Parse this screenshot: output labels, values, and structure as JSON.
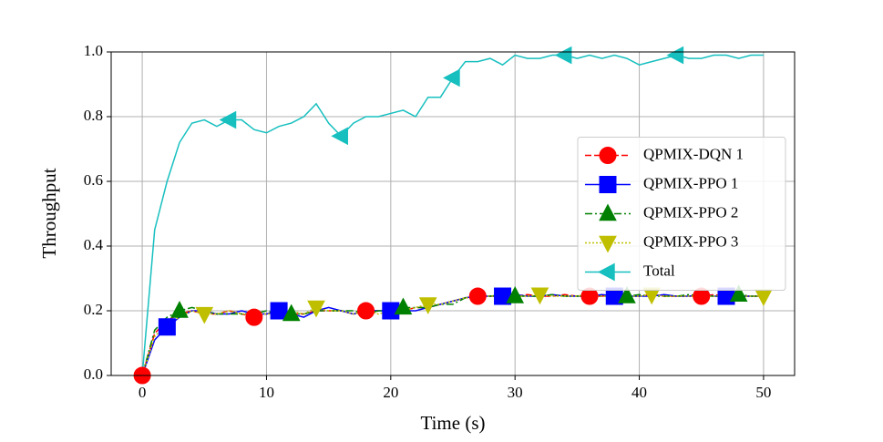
{
  "chart_data": {
    "type": "line",
    "xlabel": "Time (s)",
    "ylabel": "Throughput",
    "x": [
      0,
      1,
      2,
      3,
      4,
      5,
      6,
      7,
      8,
      9,
      10,
      11,
      12,
      13,
      14,
      15,
      16,
      17,
      18,
      19,
      20,
      21,
      22,
      23,
      24,
      25,
      26,
      27,
      28,
      29,
      30,
      31,
      32,
      33,
      34,
      35,
      36,
      37,
      38,
      39,
      40,
      41,
      42,
      43,
      44,
      45,
      46,
      47,
      48,
      49,
      50
    ],
    "xlim": [
      -2.5,
      52.5
    ],
    "xticks": [
      0,
      10,
      20,
      30,
      40,
      50
    ],
    "ylim": [
      0,
      1
    ],
    "yticks": [
      {
        "value": 0,
        "label": "0.0"
      },
      {
        "value": 0.2,
        "label": "0.2"
      },
      {
        "value": 0.4,
        "label": "0.4"
      },
      {
        "value": 0.6,
        "label": "0.6"
      },
      {
        "value": 0.8,
        "label": "0.8"
      },
      {
        "value": 1,
        "label": "1.0"
      }
    ],
    "grid": true,
    "legend": "center right",
    "series": [
      {
        "name": "QPMIX-DQN 1",
        "color": "#ff0000",
        "linestyle": "dashed",
        "marker": "o",
        "marker_start": 0,
        "marker_every": 9,
        "values": [
          0,
          0.13,
          0.17,
          0.19,
          0.2,
          0.19,
          0.19,
          0.2,
          0.19,
          0.18,
          0.19,
          0.2,
          0.19,
          0.19,
          0.2,
          0.2,
          0.2,
          0.19,
          0.2,
          0.2,
          0.2,
          0.2,
          0.21,
          0.21,
          0.22,
          0.23,
          0.24,
          0.245,
          0.245,
          0.245,
          0.245,
          0.25,
          0.245,
          0.245,
          0.25,
          0.245,
          0.245,
          0.245,
          0.25,
          0.245,
          0.245,
          0.25,
          0.245,
          0.245,
          0.245,
          0.245,
          0.25,
          0.245,
          0.245,
          0.245,
          0.245
        ]
      },
      {
        "name": "QPMIX-PPO 1",
        "color": "#0000ff",
        "linestyle": "solid",
        "marker": "s",
        "marker_start": 2,
        "marker_every": 9,
        "values": [
          0,
          0.11,
          0.15,
          0.18,
          0.2,
          0.2,
          0.19,
          0.19,
          0.2,
          0.19,
          0.19,
          0.2,
          0.19,
          0.18,
          0.2,
          0.21,
          0.2,
          0.19,
          0.2,
          0.2,
          0.2,
          0.2,
          0.2,
          0.21,
          0.22,
          0.23,
          0.24,
          0.245,
          0.245,
          0.245,
          0.25,
          0.245,
          0.245,
          0.25,
          0.245,
          0.245,
          0.245,
          0.25,
          0.245,
          0.245,
          0.245,
          0.245,
          0.25,
          0.245,
          0.245,
          0.25,
          0.245,
          0.245,
          0.245,
          0.245,
          0.245
        ]
      },
      {
        "name": "QPMIX-PPO 2",
        "color": "#008000",
        "linestyle": "dashdot",
        "marker": "^",
        "marker_start": 3,
        "marker_every": 9,
        "values": [
          0,
          0.14,
          0.18,
          0.2,
          0.21,
          0.2,
          0.19,
          0.19,
          0.19,
          0.19,
          0.2,
          0.19,
          0.19,
          0.19,
          0.2,
          0.2,
          0.2,
          0.2,
          0.19,
          0.2,
          0.2,
          0.21,
          0.21,
          0.21,
          0.22,
          0.22,
          0.24,
          0.245,
          0.245,
          0.25,
          0.245,
          0.245,
          0.245,
          0.25,
          0.245,
          0.245,
          0.25,
          0.245,
          0.245,
          0.245,
          0.25,
          0.245,
          0.245,
          0.245,
          0.25,
          0.245,
          0.245,
          0.245,
          0.25,
          0.245,
          0.245
        ]
      },
      {
        "name": "QPMIX-PPO 3",
        "color": "#bfbf00",
        "linestyle": "dotted",
        "marker": "v",
        "marker_start": 5,
        "marker_every": 9,
        "values": [
          0,
          0.12,
          0.16,
          0.18,
          0.2,
          0.19,
          0.19,
          0.2,
          0.19,
          0.19,
          0.19,
          0.19,
          0.2,
          0.19,
          0.21,
          0.2,
          0.2,
          0.19,
          0.2,
          0.19,
          0.2,
          0.2,
          0.21,
          0.22,
          0.22,
          0.23,
          0.24,
          0.245,
          0.245,
          0.245,
          0.245,
          0.245,
          0.25,
          0.245,
          0.245,
          0.245,
          0.25,
          0.245,
          0.245,
          0.245,
          0.245,
          0.25,
          0.245,
          0.245,
          0.245,
          0.245,
          0.245,
          0.25,
          0.245,
          0.245,
          0.245
        ]
      },
      {
        "name": "Total",
        "color": "#17bfbf",
        "linestyle": "solid",
        "marker": "<",
        "marker_start": 7,
        "marker_every": 9,
        "values": [
          0,
          0.45,
          0.6,
          0.72,
          0.78,
          0.79,
          0.77,
          0.79,
          0.79,
          0.76,
          0.75,
          0.77,
          0.78,
          0.8,
          0.84,
          0.78,
          0.74,
          0.78,
          0.8,
          0.8,
          0.81,
          0.82,
          0.8,
          0.86,
          0.86,
          0.92,
          0.97,
          0.97,
          0.98,
          0.96,
          0.99,
          0.98,
          0.98,
          0.99,
          0.99,
          0.98,
          0.99,
          0.98,
          0.99,
          0.98,
          0.96,
          0.97,
          0.98,
          0.99,
          0.98,
          0.98,
          0.99,
          0.99,
          0.98,
          0.99,
          0.99
        ]
      }
    ]
  }
}
